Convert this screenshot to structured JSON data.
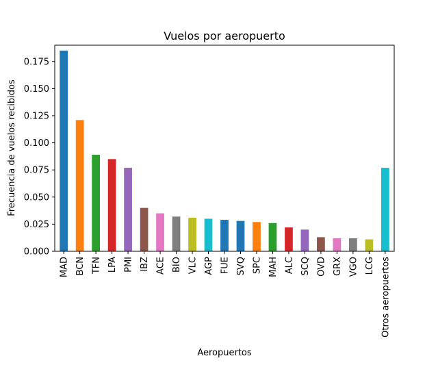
{
  "chart_data": {
    "type": "bar",
    "title": "Vuelos por aeropuerto",
    "xlabel": "Aeropuertos",
    "ylabel": "Frecuencia de vuelos recibidos",
    "ylim": [
      0,
      0.19
    ],
    "yticks": [
      "0.000",
      "0.025",
      "0.050",
      "0.075",
      "0.100",
      "0.125",
      "0.150",
      "0.175"
    ],
    "grid": false,
    "legend": "none",
    "categories": [
      "MAD",
      "BCN",
      "TFN",
      "LPA",
      "PMI",
      "IBZ",
      "ACE",
      "BIO",
      "VLC",
      "AGP",
      "FUE",
      "SVQ",
      "SPC",
      "MAH",
      "ALC",
      "SCQ",
      "OVD",
      "GRX",
      "VGO",
      "LCG",
      "Otros aeropuertos"
    ],
    "values": [
      0.185,
      0.121,
      0.089,
      0.085,
      0.077,
      0.04,
      0.035,
      0.032,
      0.031,
      0.03,
      0.029,
      0.028,
      0.027,
      0.026,
      0.022,
      0.02,
      0.013,
      0.012,
      0.012,
      0.011,
      0.077
    ],
    "colors": [
      "#1f77b4",
      "#ff7f0e",
      "#2ca02c",
      "#d62728",
      "#9467bd",
      "#8c564b",
      "#e377c2",
      "#7f7f7f",
      "#bcbd22",
      "#17becf",
      "#1f77b4",
      "#1f77b4",
      "#ff7f0e",
      "#2ca02c",
      "#d62728",
      "#9467bd",
      "#8c564b",
      "#e377c2",
      "#7f7f7f",
      "#bcbd22",
      "#17becf"
    ]
  }
}
